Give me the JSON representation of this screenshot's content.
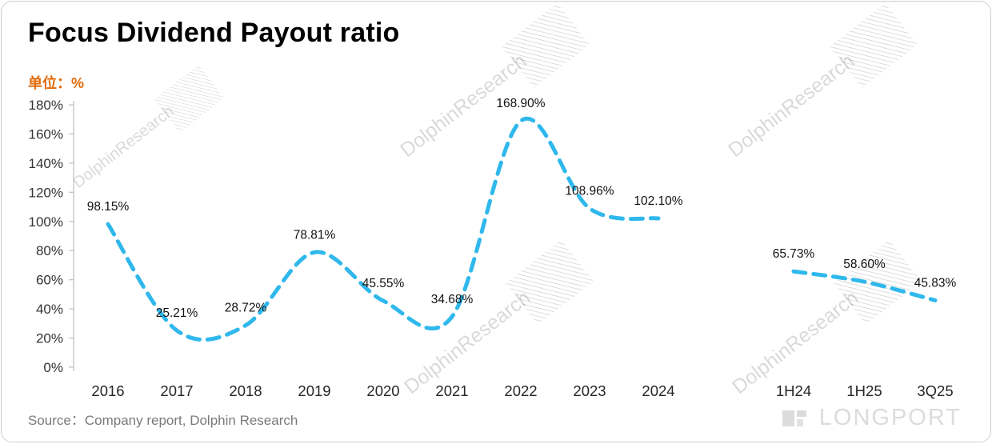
{
  "header": {
    "title": "Focus Dividend Payout ratio",
    "unit_label": "单位：%"
  },
  "watermark": {
    "text": "DolphinResearch"
  },
  "footer": {
    "source": "Source：Company report, Dolphin Research",
    "logo_text": "LONGPORT"
  },
  "colors": {
    "line": "#2fb8ec",
    "unit_label": "#e26b0a",
    "axis": "#bfbfbf"
  },
  "chart_data": {
    "type": "line",
    "title": "Focus Dividend Payout ratio",
    "ylabel": "%",
    "ylim": [
      0,
      180
    ],
    "ytick_step": 20,
    "yticks": [
      "0%",
      "20%",
      "40%",
      "60%",
      "80%",
      "100%",
      "120%",
      "140%",
      "160%",
      "180%"
    ],
    "grid": false,
    "legend": false,
    "line_style": "dashed",
    "line_color": "#2fb8ec",
    "segments": [
      {
        "categories": [
          "2016",
          "2017",
          "2018",
          "2019",
          "2020",
          "2021",
          "2022",
          "2023",
          "2024"
        ],
        "values": [
          98.15,
          25.21,
          28.72,
          78.81,
          45.55,
          34.68,
          168.9,
          108.96,
          102.1
        ],
        "labels": [
          "98.15%",
          "25.21%",
          "28.72%",
          "78.81%",
          "45.55%",
          "34.68%",
          "168.90%",
          "108.96%",
          "102.10%"
        ]
      },
      {
        "categories": [
          "1H24",
          "1H25",
          "3Q25"
        ],
        "values": [
          65.73,
          58.6,
          45.83
        ],
        "labels": [
          "65.73%",
          "58.60%",
          "45.83%"
        ]
      }
    ]
  }
}
